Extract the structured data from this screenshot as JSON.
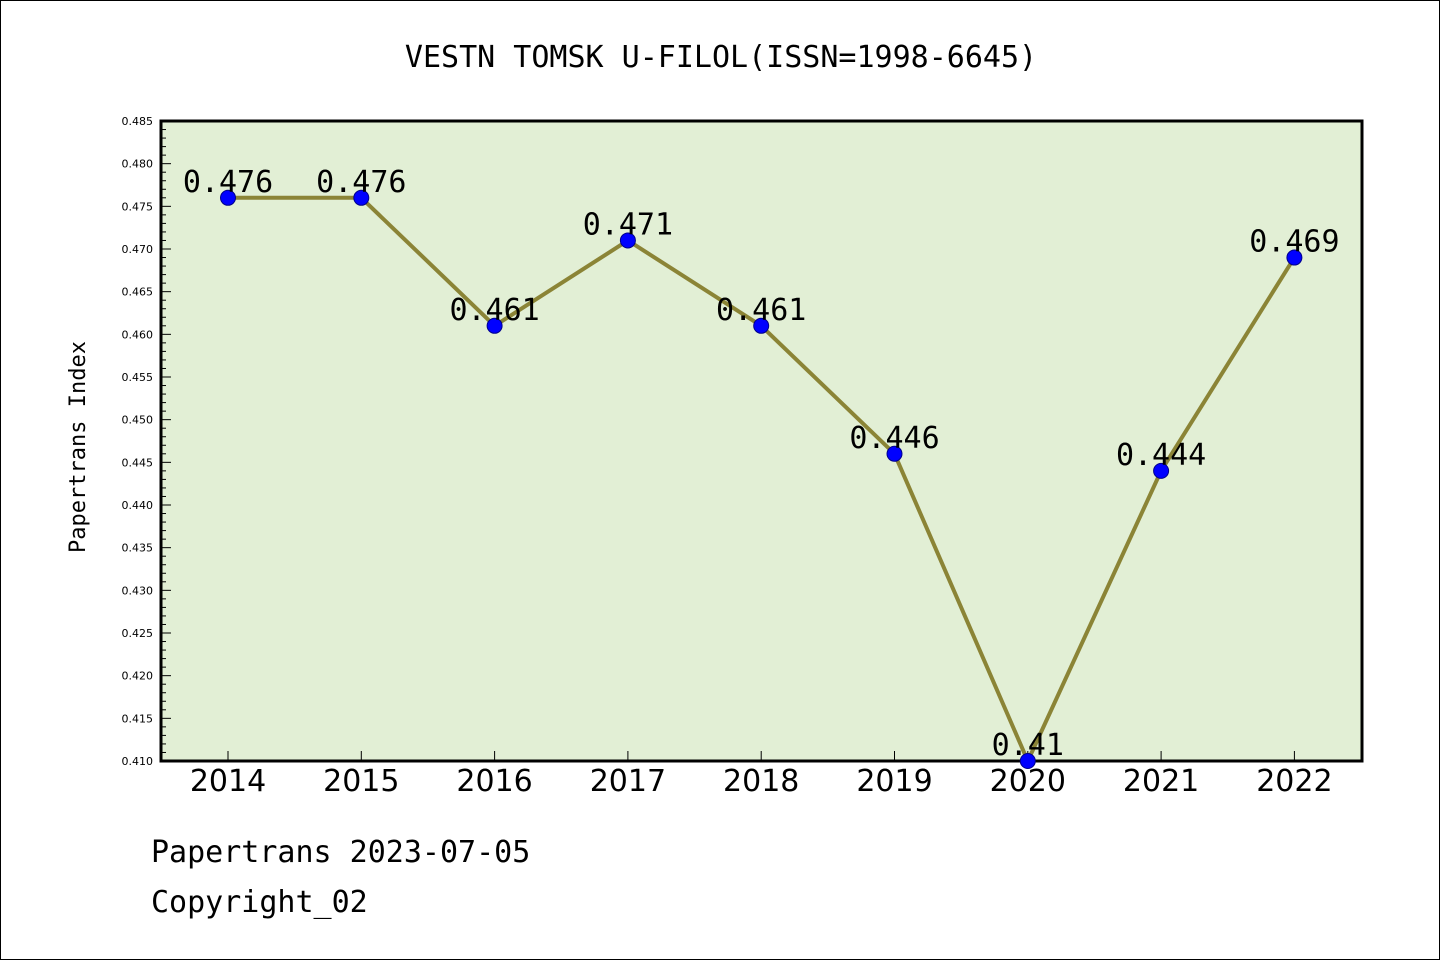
{
  "chart_data": {
    "type": "line",
    "title": "VESTN TOMSK U-FILOL(ISSN=1998-6645)",
    "xlabel": "",
    "ylabel": "Papertrans Index",
    "categories": [
      "2014",
      "2015",
      "2016",
      "2017",
      "2018",
      "2019",
      "2020",
      "2021",
      "2022"
    ],
    "series": [
      {
        "values": [
          0.476,
          0.476,
          0.461,
          0.471,
          0.461,
          0.446,
          0.41,
          0.444,
          0.469
        ],
        "data_labels": [
          "0.476",
          "0.476",
          "0.461",
          "0.471",
          "0.461",
          "0.446",
          "0.41",
          "0.444",
          "0.469"
        ]
      }
    ],
    "ylim": [
      0.41,
      0.485
    ],
    "yticks": [
      "0.410",
      "0.415",
      "0.420",
      "0.425",
      "0.430",
      "0.435",
      "0.440",
      "0.445",
      "0.450",
      "0.455",
      "0.460",
      "0.465",
      "0.470",
      "0.475",
      "0.480",
      "0.485"
    ],
    "grid": false,
    "colors": {
      "plot_background": "#e2efd5",
      "line": "#8b8436",
      "marker": "#0000ff"
    }
  },
  "footer": {
    "date_line": "Papertrans 2023-07-05",
    "copyright": "Copyright_02"
  }
}
